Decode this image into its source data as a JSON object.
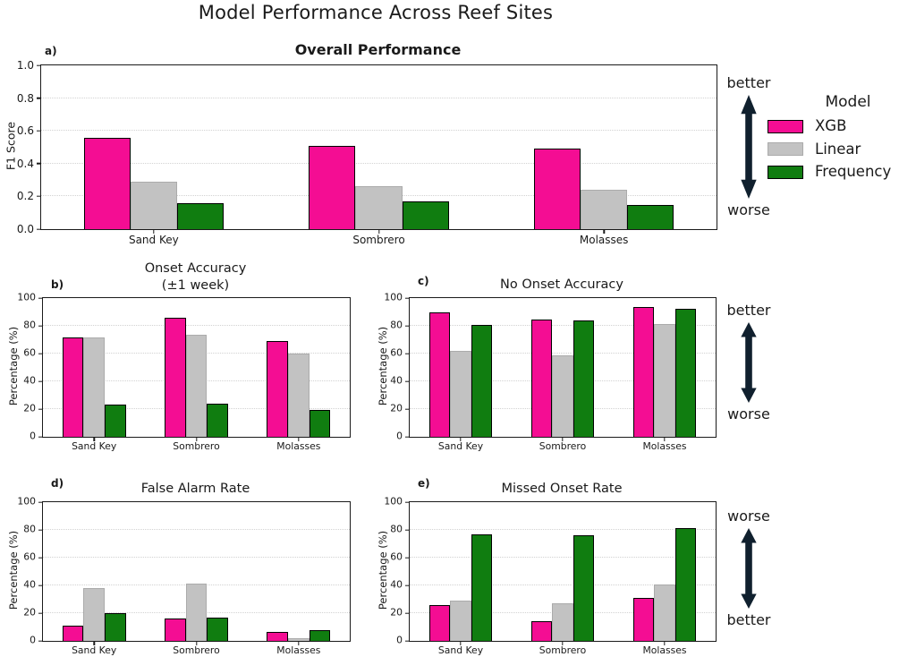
{
  "figure_title": "Model Performance Across Reef Sites",
  "colors": {
    "xgb": "#f40d93",
    "linear": "#c2c2c2",
    "frequency": "#107d10",
    "arrow": "#10202e",
    "grid": "#d2d2d2"
  },
  "legend": {
    "title": "Model",
    "items": [
      {
        "label": "XGB",
        "color": "#f40d93",
        "edge": "#000000"
      },
      {
        "label": "Linear",
        "color": "#c2c2c2",
        "edge": "#ababab"
      },
      {
        "label": "Frequency",
        "color": "#107d10",
        "edge": "#000000"
      }
    ]
  },
  "annotations": [
    {
      "panel": "a",
      "top": "better",
      "bottom": "worse"
    },
    {
      "panel": "c",
      "top": "better",
      "bottom": "worse"
    },
    {
      "panel": "e",
      "top": "worse",
      "bottom": "better"
    }
  ],
  "chart_data": [
    {
      "id": "a",
      "panel_label": "a)",
      "type": "bar",
      "title": "Overall Performance",
      "ylabel": "F1 Score",
      "ylim": [
        0,
        1.0
      ],
      "yticks": [
        0,
        0.2,
        0.4,
        0.6,
        0.8,
        1.0
      ],
      "ytick_labels": [
        "0.0",
        "0.2",
        "0.4",
        "0.6",
        "0.8",
        "1.0"
      ],
      "categories": [
        "Sand Key",
        "Sombrero",
        "Molasses"
      ],
      "series": [
        {
          "name": "XGB",
          "color": "#f40d93",
          "edge": "#000000",
          "values": [
            0.56,
            0.51,
            0.49
          ]
        },
        {
          "name": "Linear",
          "color": "#c2c2c2",
          "edge": "#ababab",
          "values": [
            0.29,
            0.26,
            0.24
          ]
        },
        {
          "name": "Frequency",
          "color": "#107d10",
          "edge": "#000000",
          "values": [
            0.16,
            0.17,
            0.15
          ]
        }
      ]
    },
    {
      "id": "b",
      "panel_label": "b)",
      "type": "bar",
      "title": "Onset Accuracy\n(±1 week)",
      "ylabel": "Percentage (%)",
      "ylim": [
        0,
        100
      ],
      "yticks": [
        0,
        20,
        40,
        60,
        80,
        100
      ],
      "ytick_labels": [
        "0",
        "20",
        "40",
        "60",
        "80",
        "100"
      ],
      "categories": [
        "Sand Key",
        "Sombrero",
        "Molasses"
      ],
      "series": [
        {
          "name": "XGB",
          "color": "#f40d93",
          "edge": "#000000",
          "values": [
            71.5,
            85.5,
            69
          ]
        },
        {
          "name": "Linear",
          "color": "#c2c2c2",
          "edge": "#ababab",
          "values": [
            71.5,
            73.5,
            60
          ]
        },
        {
          "name": "Frequency",
          "color": "#107d10",
          "edge": "#000000",
          "values": [
            23,
            24,
            19.5
          ]
        }
      ]
    },
    {
      "id": "c",
      "panel_label": "c)",
      "type": "bar",
      "title": "No Onset Accuracy",
      "ylabel": "Percentage (%)",
      "ylim": [
        0,
        100
      ],
      "yticks": [
        0,
        20,
        40,
        60,
        80,
        100
      ],
      "ytick_labels": [
        "0",
        "20",
        "40",
        "60",
        "80",
        "100"
      ],
      "categories": [
        "Sand Key",
        "Sombrero",
        "Molasses"
      ],
      "series": [
        {
          "name": "XGB",
          "color": "#f40d93",
          "edge": "#000000",
          "values": [
            89.5,
            84.5,
            93.5
          ]
        },
        {
          "name": "Linear",
          "color": "#c2c2c2",
          "edge": "#ababab",
          "values": [
            62,
            59,
            81
          ]
        },
        {
          "name": "Frequency",
          "color": "#107d10",
          "edge": "#000000",
          "values": [
            80.5,
            84,
            92.5
          ]
        }
      ]
    },
    {
      "id": "d",
      "panel_label": "d)",
      "type": "bar",
      "title": "False Alarm Rate",
      "ylabel": "Percentage (%)",
      "ylim": [
        0,
        100
      ],
      "yticks": [
        0,
        20,
        40,
        60,
        80,
        100
      ],
      "ytick_labels": [
        "0",
        "20",
        "40",
        "60",
        "80",
        "100"
      ],
      "categories": [
        "Sand Key",
        "Sombrero",
        "Molasses"
      ],
      "series": [
        {
          "name": "XGB",
          "color": "#f40d93",
          "edge": "#000000",
          "values": [
            11,
            16,
            6.5
          ]
        },
        {
          "name": "Linear",
          "color": "#c2c2c2",
          "edge": "#ababab",
          "values": [
            38,
            41,
            2
          ]
        },
        {
          "name": "Frequency",
          "color": "#107d10",
          "edge": "#000000",
          "values": [
            20,
            16.5,
            8
          ]
        }
      ]
    },
    {
      "id": "e",
      "panel_label": "e)",
      "type": "bar",
      "title": "Missed Onset Rate",
      "ylabel": "Percentage (%)",
      "ylim": [
        0,
        100
      ],
      "yticks": [
        0,
        20,
        40,
        60,
        80,
        100
      ],
      "ytick_labels": [
        "0",
        "20",
        "40",
        "60",
        "80",
        "100"
      ],
      "categories": [
        "Sand Key",
        "Sombrero",
        "Molasses"
      ],
      "series": [
        {
          "name": "XGB",
          "color": "#f40d93",
          "edge": "#000000",
          "values": [
            26,
            14.5,
            31
          ]
        },
        {
          "name": "Linear",
          "color": "#c2c2c2",
          "edge": "#ababab",
          "values": [
            29,
            27,
            40.5
          ]
        },
        {
          "name": "Frequency",
          "color": "#107d10",
          "edge": "#000000",
          "values": [
            77,
            76,
            81.5
          ]
        }
      ]
    }
  ]
}
